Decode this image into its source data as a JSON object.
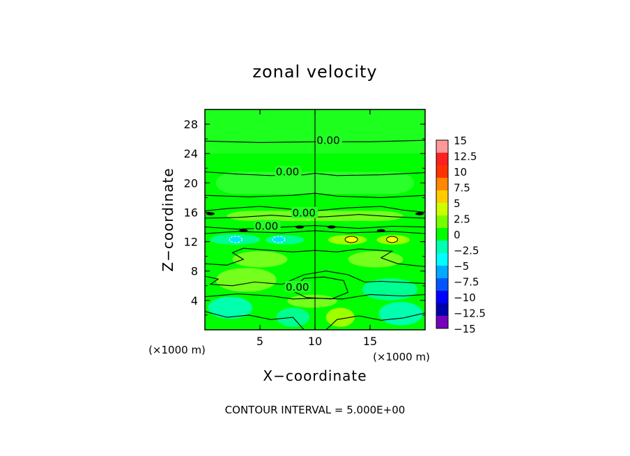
{
  "chart_data": {
    "type": "heatmap",
    "title": "zonal velocity",
    "xlabel": "X−coordinate",
    "ylabel": "Z−coordinate",
    "xlim": [
      0,
      20
    ],
    "ylim": [
      0,
      30
    ],
    "x_ticks": [
      5,
      10,
      15
    ],
    "x_tick_labels": [
      "5",
      "10",
      "15"
    ],
    "y_ticks": [
      4,
      8,
      12,
      16,
      20,
      24,
      28
    ],
    "y_tick_labels": [
      "4",
      "8",
      "12",
      "16",
      "20",
      "24",
      "28"
    ],
    "x_unit_left": "(×1000 m)",
    "x_unit_right": "(×1000 m)",
    "contour_interval_label": "CONTOUR INTERVAL = 5.000E+00",
    "contour_labels": [
      {
        "text": "0.00",
        "x": 11.2,
        "z": 25.5
      },
      {
        "text": "0.00",
        "x": 7.5,
        "z": 21.2
      },
      {
        "text": "0.00",
        "x": 9.0,
        "z": 15.6
      },
      {
        "text": "0.00",
        "x": 5.6,
        "z": 13.8
      },
      {
        "text": "0.00",
        "x": 8.4,
        "z": 5.5
      }
    ],
    "colorbar": {
      "levels": [
        15,
        12.5,
        10,
        7.5,
        5,
        2.5,
        0,
        -2.5,
        -5,
        -7.5,
        -10,
        -12.5,
        -15
      ],
      "labels": [
        "15",
        "12.5",
        "10",
        "7.5",
        "5",
        "2.5",
        "0",
        "−2.5",
        "−5",
        "−7.5",
        "−10",
        "−12.5",
        "−15"
      ],
      "colors": [
        "#ff9999",
        "#ff2020",
        "#ff3300",
        "#ff8800",
        "#ffcc00",
        "#ccff00",
        "#77ff00",
        "#00ff00",
        "#00ffb0",
        "#00ffff",
        "#00aaff",
        "#0055ff",
        "#0000ff",
        "#0000aa",
        "#7700bb"
      ]
    },
    "background_color": "#00ff00",
    "grid": false
  }
}
